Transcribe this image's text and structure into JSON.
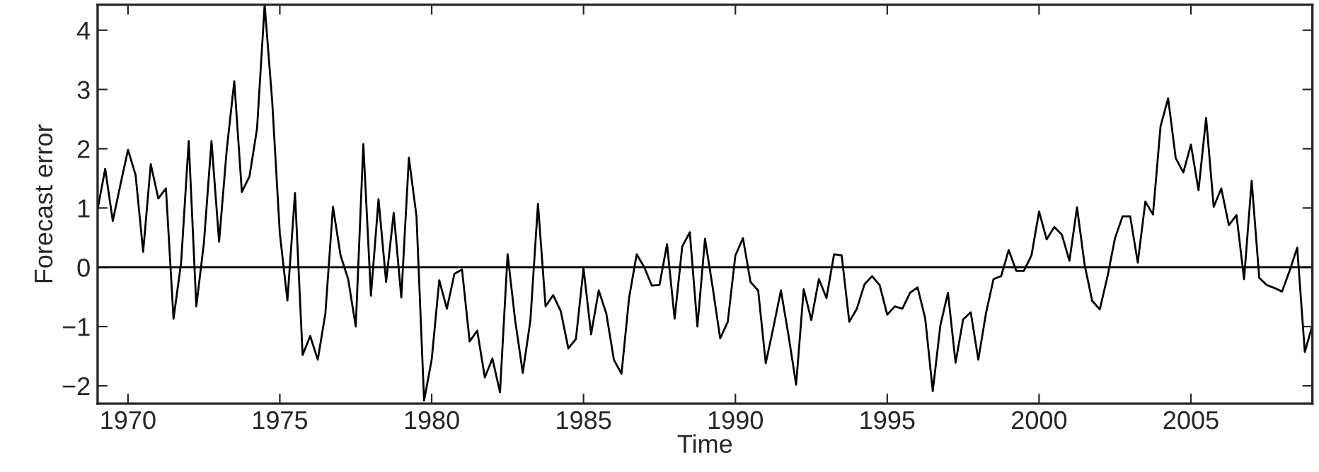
{
  "chart_data": {
    "type": "line",
    "xlabel": "Time",
    "ylabel": "Forecast error",
    "xlim": [
      1969,
      2009
    ],
    "xticks": [
      1970,
      1975,
      1980,
      1985,
      1990,
      1995,
      2000,
      2005
    ],
    "ylim": [
      -2.3,
      4.43
    ],
    "yticks": [
      -2,
      -1,
      0,
      1,
      2,
      3,
      4
    ],
    "grid": false,
    "legend": false,
    "marker": "none",
    "line_style": "solid",
    "ref_lines": [
      {
        "axis": "y",
        "value": 0,
        "label": null,
        "color": "#000000"
      }
    ],
    "series": [
      {
        "color": "#000000",
        "x": [
          1969.0,
          1969.25,
          1969.5,
          1969.75,
          1970.0,
          1970.25,
          1970.5,
          1970.75,
          1971.0,
          1971.25,
          1971.5,
          1971.75,
          1972.0,
          1972.25,
          1972.5,
          1972.75,
          1973.0,
          1973.25,
          1973.5,
          1973.75,
          1974.0,
          1974.25,
          1974.5,
          1974.75,
          1975.0,
          1975.25,
          1975.5,
          1975.75,
          1976.0,
          1976.25,
          1976.5,
          1976.75,
          1977.0,
          1977.25,
          1977.5,
          1977.75,
          1978.0,
          1978.25,
          1978.5,
          1978.75,
          1979.0,
          1979.25,
          1979.5,
          1979.75,
          1980.0,
          1980.25,
          1980.5,
          1980.75,
          1981.0,
          1981.25,
          1981.5,
          1981.75,
          1982.0,
          1982.25,
          1982.5,
          1982.75,
          1983.0,
          1983.25,
          1983.5,
          1983.75,
          1984.0,
          1984.25,
          1984.5,
          1984.75,
          1985.0,
          1985.25,
          1985.5,
          1985.75,
          1986.0,
          1986.25,
          1986.5,
          1986.75,
          1987.0,
          1987.25,
          1987.5,
          1987.75,
          1988.0,
          1988.25,
          1988.5,
          1988.75,
          1989.0,
          1989.25,
          1989.5,
          1989.75,
          1990.0,
          1990.25,
          1990.5,
          1990.75,
          1991.0,
          1991.25,
          1991.5,
          1991.75,
          1992.0,
          1992.25,
          1992.5,
          1992.75,
          1993.0,
          1993.25,
          1993.5,
          1993.75,
          1994.0,
          1994.25,
          1994.5,
          1994.75,
          1995.0,
          1995.25,
          1995.5,
          1995.75,
          1996.0,
          1996.25,
          1996.5,
          1996.75,
          1997.0,
          1997.25,
          1997.5,
          1997.75,
          1998.0,
          1998.25,
          1998.5,
          1998.75,
          1999.0,
          1999.25,
          1999.5,
          1999.75,
          2000.0,
          2000.25,
          2000.5,
          2000.75,
          2001.0,
          2001.25,
          2001.5,
          2001.75,
          2002.0,
          2002.25,
          2002.5,
          2002.75,
          2003.0,
          2003.25,
          2003.5,
          2003.75,
          2004.0,
          2004.25,
          2004.5,
          2004.75,
          2005.0,
          2005.25,
          2005.5,
          2005.75,
          2006.0,
          2006.25,
          2006.5,
          2006.75,
          2007.0,
          2007.25,
          2007.5,
          2007.75,
          2008.0,
          2008.25,
          2008.5,
          2008.75,
          2009.0
        ],
        "values": [
          0.98,
          1.66,
          0.78,
          1.39,
          1.98,
          1.56,
          0.26,
          1.74,
          1.16,
          1.33,
          -0.87,
          0.08,
          2.13,
          -0.66,
          0.41,
          2.13,
          0.43,
          1.97,
          3.14,
          1.27,
          1.53,
          2.34,
          4.43,
          2.79,
          0.57,
          -0.56,
          1.25,
          -1.48,
          -1.16,
          -1.56,
          -0.78,
          1.02,
          0.2,
          -0.2,
          -1.0,
          2.08,
          -0.48,
          1.15,
          -0.25,
          0.92,
          -0.51,
          1.85,
          0.86,
          -2.25,
          -1.56,
          -0.22,
          -0.7,
          -0.11,
          -0.04,
          -1.25,
          -1.07,
          -1.86,
          -1.54,
          -2.11,
          0.22,
          -0.9,
          -1.78,
          -0.9,
          1.07,
          -0.66,
          -0.47,
          -0.74,
          -1.37,
          -1.21,
          -0.02,
          -1.13,
          -0.39,
          -0.78,
          -1.56,
          -1.8,
          -0.52,
          0.22,
          0.0,
          -0.31,
          -0.3,
          0.39,
          -0.87,
          0.35,
          0.59,
          -1.0,
          0.48,
          -0.33,
          -1.2,
          -0.92,
          0.2,
          0.49,
          -0.25,
          -0.39,
          -1.62,
          -1.02,
          -0.39,
          -1.15,
          -1.98,
          -0.37,
          -0.89,
          -0.2,
          -0.52,
          0.22,
          0.2,
          -0.92,
          -0.7,
          -0.29,
          -0.15,
          -0.3,
          -0.8,
          -0.66,
          -0.7,
          -0.43,
          -0.34,
          -0.86,
          -2.09,
          -0.98,
          -0.43,
          -1.61,
          -0.88,
          -0.76,
          -1.56,
          -0.78,
          -0.2,
          -0.15,
          0.29,
          -0.06,
          -0.06,
          0.2,
          0.94,
          0.47,
          0.68,
          0.55,
          0.11,
          1.01,
          0.04,
          -0.57,
          -0.71,
          -0.16,
          0.49,
          0.86,
          0.86,
          0.08,
          1.11,
          0.89,
          2.38,
          2.85,
          1.84,
          1.6,
          2.07,
          1.3,
          2.52,
          1.02,
          1.33,
          0.71,
          0.88,
          -0.2,
          1.46,
          -0.18,
          -0.3,
          -0.35,
          -0.41,
          -0.06,
          0.33,
          -1.43,
          -0.98
        ]
      }
    ]
  }
}
